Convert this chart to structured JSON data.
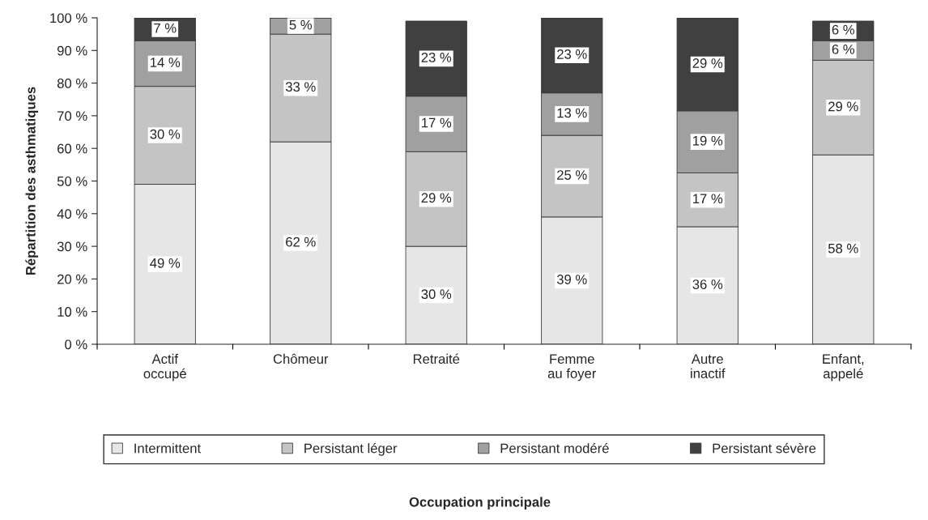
{
  "chart_data": {
    "type": "bar",
    "stacked": true,
    "annotations": [
      "Occupation principale"
    ],
    "ylabel": "Répartition des asthmatiques",
    "categories": [
      "Actif\noccupé",
      "Chômeur",
      "Retraité",
      "Femme\nau foyer",
      "Autre\ninactif",
      "Enfant,\nappelé"
    ],
    "series": [
      {
        "name": "Intermittent",
        "color": "#e6e6e6",
        "values": [
          49,
          62,
          30,
          39,
          36,
          58
        ],
        "value_labels": [
          "49 %",
          "62 %",
          "30 %",
          "39 %",
          "36 %",
          "58 %"
        ]
      },
      {
        "name": "Persistant léger",
        "color": "#c4c4c4",
        "values": [
          30,
          33,
          29,
          25,
          16.5,
          29
        ],
        "value_labels": [
          "30 %",
          "33 %",
          "29 %",
          "25 %",
          "17 %",
          "29 %"
        ]
      },
      {
        "name": "Persistant modéré",
        "color": "#a0a0a0",
        "values": [
          14,
          5,
          17,
          13,
          19,
          6
        ],
        "value_labels": [
          "14 %",
          "5 %",
          "17 %",
          "13 %",
          "19 %",
          "6 %"
        ]
      },
      {
        "name": "Persistant sévère",
        "color": "#404040",
        "values": [
          7,
          null,
          23,
          23,
          28.5,
          6
        ],
        "value_labels": [
          "7 %",
          null,
          "23 %",
          "23 %",
          "29 %",
          "6 %"
        ]
      }
    ],
    "ylim": [
      0,
      100
    ],
    "yticks": [
      {
        "value": 0,
        "label": "0 %"
      },
      {
        "value": 10,
        "label": "10 %"
      },
      {
        "value": 20,
        "label": "20 %"
      },
      {
        "value": 30,
        "label": "30 %"
      },
      {
        "value": 40,
        "label": "40 %"
      },
      {
        "value": 50,
        "label": "50 %"
      },
      {
        "value": 60,
        "label": "60 %"
      },
      {
        "value": 70,
        "label": "70 %"
      },
      {
        "value": 80,
        "label": "80 %"
      },
      {
        "value": 90,
        "label": "90 %"
      },
      {
        "value": 100,
        "label": "100 %"
      }
    ],
    "grid": false,
    "legend": "bottom"
  }
}
